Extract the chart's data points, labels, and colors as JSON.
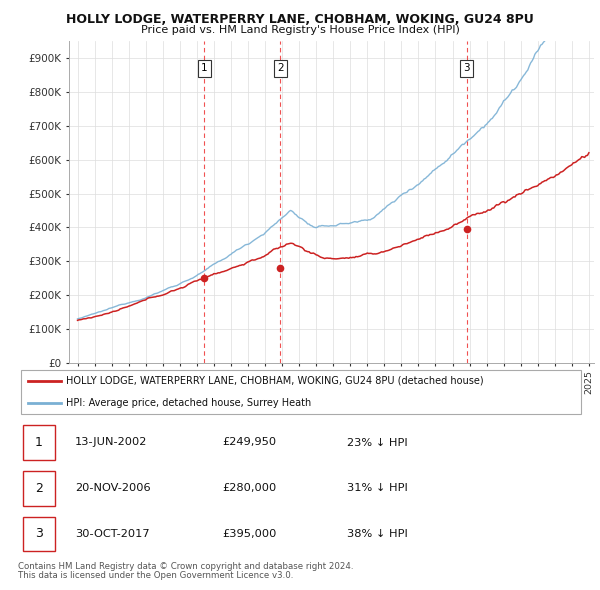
{
  "title1": "HOLLY LODGE, WATERPERRY LANE, CHOBHAM, WOKING, GU24 8PU",
  "title2": "Price paid vs. HM Land Registry's House Price Index (HPI)",
  "ylabel_ticks": [
    "£0",
    "£100K",
    "£200K",
    "£300K",
    "£400K",
    "£500K",
    "£600K",
    "£700K",
    "£800K",
    "£900K"
  ],
  "ytick_vals": [
    0,
    100000,
    200000,
    300000,
    400000,
    500000,
    600000,
    700000,
    800000,
    900000
  ],
  "ylim": [
    0,
    950000
  ],
  "xlim_start": 1994.5,
  "xlim_end": 2025.3,
  "sale_dates": [
    2002.44,
    2006.89,
    2017.83
  ],
  "sale_prices": [
    249950,
    280000,
    395000
  ],
  "sale_labels": [
    "1",
    "2",
    "3"
  ],
  "vline_color": "#ee3333",
  "hpi_line_color": "#7ab0d4",
  "price_line_color": "#cc2222",
  "sale_marker_color": "#cc2222",
  "legend_entry1": "HOLLY LODGE, WATERPERRY LANE, CHOBHAM, WOKING, GU24 8PU (detached house)",
  "legend_entry2": "HPI: Average price, detached house, Surrey Heath",
  "table_entries": [
    {
      "num": "1",
      "date": "13-JUN-2002",
      "price": "£249,950",
      "pct": "23% ↓ HPI"
    },
    {
      "num": "2",
      "date": "20-NOV-2006",
      "price": "£280,000",
      "pct": "31% ↓ HPI"
    },
    {
      "num": "3",
      "date": "30-OCT-2017",
      "price": "£395,000",
      "pct": "38% ↓ HPI"
    }
  ],
  "footer1": "Contains HM Land Registry data © Crown copyright and database right 2024.",
  "footer2": "This data is licensed under the Open Government Licence v3.0.",
  "background_color": "#ffffff",
  "grid_color": "#dddddd"
}
